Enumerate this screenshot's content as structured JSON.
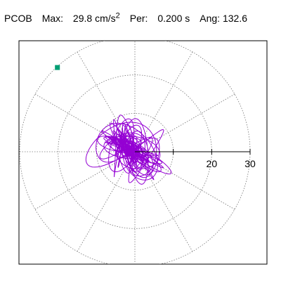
{
  "header": {
    "station": "PCOB",
    "max_label": "Max:",
    "max_value": "29.8",
    "max_unit": "cm/s",
    "max_unit_exp": "2",
    "per_label": "Per:",
    "per_value": "0.200 s",
    "ang_label": "Ang:",
    "ang_value": "132.6"
  },
  "chart_data": {
    "type": "scatter",
    "title": "",
    "coordinate_system": "polar",
    "radial_axis": {
      "range": [
        0,
        30
      ],
      "ticks": [
        10,
        20,
        30
      ],
      "tick_labels": [
        "20",
        "30"
      ]
    },
    "rings": [
      10,
      20,
      30
    ],
    "spokes_deg": [
      0,
      30,
      60,
      90,
      120,
      150,
      180,
      210,
      240,
      270,
      300,
      330
    ],
    "grid": true,
    "trace_color": "#9400d3",
    "max_marker": {
      "value": 29.8,
      "angle_deg": 132.6,
      "color": "#009e73"
    }
  }
}
